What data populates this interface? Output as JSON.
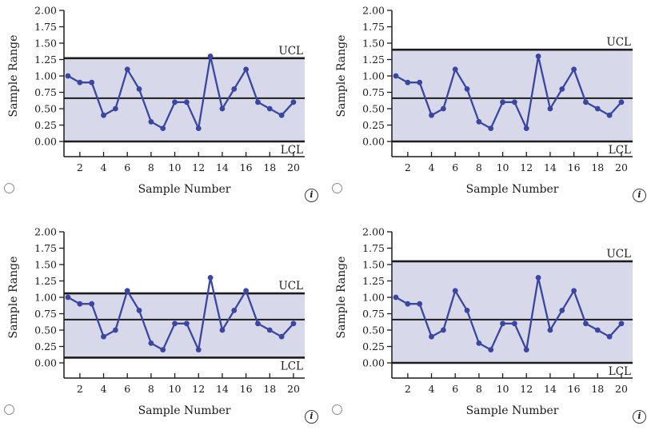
{
  "icons": {
    "info_glyph": "i"
  },
  "colors": {
    "background": "#ffffff",
    "series": "#3b46a0",
    "band": "#d7d8e9",
    "control_line": "#1c1c1c",
    "axis": "#1c1c1c",
    "text": "#1a1a1a",
    "radio_border": "#8a8a8a",
    "info_border": "#3a3a3a"
  },
  "options": [
    {
      "position": "top-left",
      "selected": false
    },
    {
      "position": "top-right",
      "selected": false
    },
    {
      "position": "bottom-left",
      "selected": false
    },
    {
      "position": "bottom-right",
      "selected": false
    }
  ],
  "chart_data": {
    "type": "line",
    "title": "",
    "xlabel": "Sample Number",
    "ylabel": "Sample Range",
    "x": [
      1,
      2,
      3,
      4,
      5,
      6,
      7,
      8,
      9,
      10,
      11,
      12,
      13,
      14,
      15,
      16,
      17,
      18,
      19,
      20
    ],
    "values": [
      1.0,
      0.9,
      0.9,
      0.4,
      0.5,
      1.1,
      0.8,
      0.3,
      0.2,
      0.6,
      0.6,
      0.2,
      1.3,
      0.5,
      0.8,
      1.1,
      0.6,
      0.5,
      0.4,
      0.6
    ],
    "ylim": [
      0.0,
      2.0
    ],
    "yticks": [
      0.0,
      0.25,
      0.5,
      0.75,
      1.0,
      1.25,
      1.5,
      1.75,
      2.0
    ],
    "xticks": [
      2,
      4,
      6,
      8,
      10,
      12,
      14,
      16,
      18,
      20
    ],
    "grid": "off",
    "legend": "none",
    "ucl_label": "UCL",
    "lcl_label": "LCL",
    "charts": [
      {
        "position": "top-left",
        "ucl": 1.27,
        "lcl": 0.0,
        "center": 0.66
      },
      {
        "position": "top-right",
        "ucl": 1.4,
        "lcl": 0.0,
        "center": 0.66
      },
      {
        "position": "bottom-left",
        "ucl": 1.06,
        "lcl": 0.08,
        "center": 0.66
      },
      {
        "position": "bottom-right",
        "ucl": 1.55,
        "lcl": 0.0,
        "center": 0.66
      }
    ]
  }
}
